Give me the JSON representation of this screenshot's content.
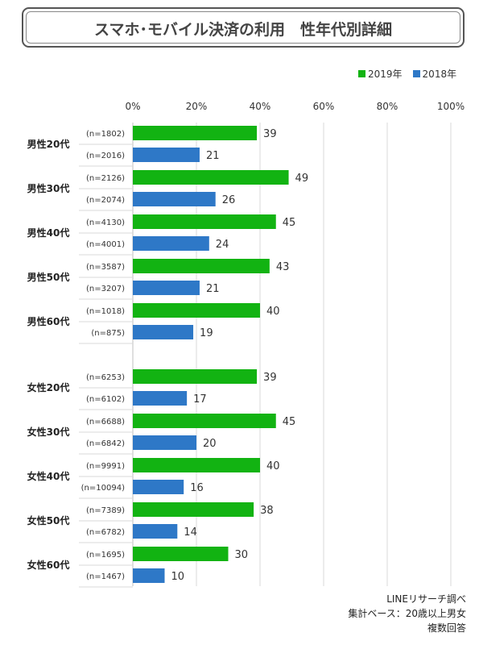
{
  "title": "スマホ･モバイル決済の利用　性年代別詳細",
  "legend": [
    {
      "label": "2019年",
      "color": "#12b312"
    },
    {
      "label": "2018年",
      "color": "#2e78c7"
    }
  ],
  "footer": [
    "LINEリサーチ調べ",
    "集計ベース：20歳以上男女",
    "複数回答"
  ],
  "chart_data": {
    "type": "bar",
    "orientation": "horizontal",
    "x_ticks": [
      "0%",
      "20%",
      "40%",
      "60%",
      "80%",
      "100%"
    ],
    "xlim": [
      0,
      100
    ],
    "grid": true,
    "legend_position": "top-right",
    "categories": [
      "男性20代",
      "男性30代",
      "男性40代",
      "男性50代",
      "男性60代",
      "女性20代",
      "女性30代",
      "女性40代",
      "女性50代",
      "女性60代"
    ],
    "series": [
      {
        "name": "2019年",
        "color": "#12b312",
        "values": [
          39,
          49,
          45,
          43,
          40,
          39,
          45,
          40,
          38,
          30
        ],
        "n_labels": [
          "(n=1802)",
          "(n=2126)",
          "(n=4130)",
          "(n=3587)",
          "(n=1018)",
          "(n=6253)",
          "(n=6688)",
          "(n=9991)",
          "(n=7389)",
          "(n=1695)"
        ]
      },
      {
        "name": "2018年",
        "color": "#2e78c7",
        "values": [
          21,
          26,
          24,
          21,
          19,
          17,
          20,
          16,
          14,
          10
        ],
        "n_labels": [
          "(n=2016)",
          "(n=2074)",
          "(n=4001)",
          "(n=3207)",
          "(n=875)",
          "(n=6102)",
          "(n=6842)",
          "(n=10094)",
          "(n=6782)",
          "(n=1467)"
        ]
      }
    ]
  }
}
